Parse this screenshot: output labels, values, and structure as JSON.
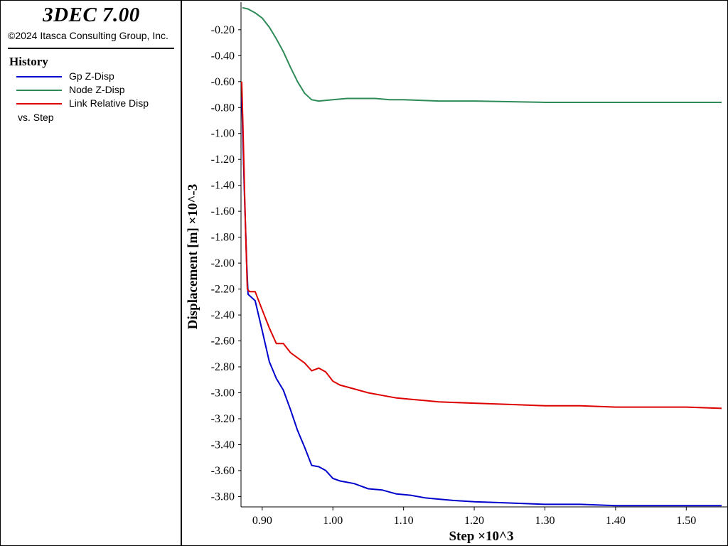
{
  "app": {
    "title": "3DEC 7.00",
    "copyright": "©2024 Itasca Consulting Group, Inc."
  },
  "legend": {
    "heading": "History",
    "items": [
      {
        "label": "Gp Z-Disp",
        "color": "#0000cc"
      },
      {
        "label": "Node Z-Disp",
        "color": "#2e8b57"
      },
      {
        "label": "Link Relative Disp",
        "color": "#dd0000"
      }
    ],
    "vs_label": "vs. Step"
  },
  "chart_data": {
    "type": "line",
    "xlabel": "Step ×10^3",
    "ylabel": "Displacement [m] ×10^-3",
    "xlim": [
      0.87,
      1.55
    ],
    "ylim": [
      -3.88,
      -0.02
    ],
    "x_ticks": [
      "0.90",
      "1.00",
      "1.10",
      "1.20",
      "1.30",
      "1.40",
      "1.50"
    ],
    "y_ticks": [
      "-0.20",
      "-0.40",
      "-0.60",
      "-0.80",
      "-1.00",
      "-1.20",
      "-1.40",
      "-1.60",
      "-1.80",
      "-2.00",
      "-2.20",
      "-2.40",
      "-2.60",
      "-2.80",
      "-3.00",
      "-3.20",
      "-3.40",
      "-3.60",
      "-3.80"
    ],
    "series": [
      {
        "name": "Gp Z-Disp",
        "color": "#0000cc",
        "x": [
          0.871,
          0.875,
          0.878,
          0.88,
          0.884,
          0.89,
          0.9,
          0.91,
          0.92,
          0.93,
          0.94,
          0.95,
          0.96,
          0.97,
          0.98,
          0.99,
          1.0,
          1.01,
          1.03,
          1.05,
          1.07,
          1.09,
          1.11,
          1.13,
          1.15,
          1.17,
          1.2,
          1.25,
          1.3,
          1.35,
          1.4,
          1.45,
          1.5,
          1.55
        ],
        "y": [
          -0.72,
          -1.5,
          -2.0,
          -2.24,
          -2.26,
          -2.29,
          -2.52,
          -2.76,
          -2.89,
          -2.98,
          -3.13,
          -3.29,
          -3.42,
          -3.56,
          -3.57,
          -3.6,
          -3.66,
          -3.68,
          -3.7,
          -3.74,
          -3.75,
          -3.78,
          -3.79,
          -3.81,
          -3.82,
          -3.83,
          -3.84,
          -3.85,
          -3.86,
          -3.86,
          -3.87,
          -3.87,
          -3.87,
          -3.87
        ]
      },
      {
        "name": "Node Z-Disp",
        "color": "#2e8b57",
        "x": [
          0.872,
          0.88,
          0.89,
          0.9,
          0.91,
          0.92,
          0.93,
          0.94,
          0.95,
          0.96,
          0.97,
          0.98,
          1.0,
          1.02,
          1.04,
          1.06,
          1.08,
          1.1,
          1.15,
          1.2,
          1.3,
          1.4,
          1.5,
          1.55
        ],
        "y": [
          -0.03,
          -0.04,
          -0.07,
          -0.11,
          -0.18,
          -0.27,
          -0.37,
          -0.49,
          -0.6,
          -0.69,
          -0.74,
          -0.75,
          -0.74,
          -0.73,
          -0.73,
          -0.73,
          -0.74,
          -0.74,
          -0.75,
          -0.75,
          -0.76,
          -0.76,
          -0.76,
          -0.76
        ]
      },
      {
        "name": "Link Relative Disp",
        "color": "#dd0000",
        "x": [
          0.871,
          0.873,
          0.875,
          0.877,
          0.879,
          0.882,
          0.886,
          0.89,
          0.9,
          0.91,
          0.92,
          0.93,
          0.94,
          0.95,
          0.96,
          0.97,
          0.98,
          0.99,
          1.0,
          1.01,
          1.03,
          1.05,
          1.07,
          1.09,
          1.11,
          1.13,
          1.15,
          1.2,
          1.25,
          1.3,
          1.35,
          1.4,
          1.45,
          1.5,
          1.55
        ],
        "y": [
          -0.6,
          -1.0,
          -1.45,
          -1.85,
          -2.2,
          -2.22,
          -2.22,
          -2.22,
          -2.36,
          -2.5,
          -2.62,
          -2.62,
          -2.69,
          -2.73,
          -2.77,
          -2.83,
          -2.81,
          -2.84,
          -2.91,
          -2.94,
          -2.97,
          -3.0,
          -3.02,
          -3.04,
          -3.05,
          -3.06,
          -3.07,
          -3.08,
          -3.09,
          -3.1,
          -3.1,
          -3.11,
          -3.11,
          -3.11,
          -3.12
        ]
      }
    ]
  }
}
